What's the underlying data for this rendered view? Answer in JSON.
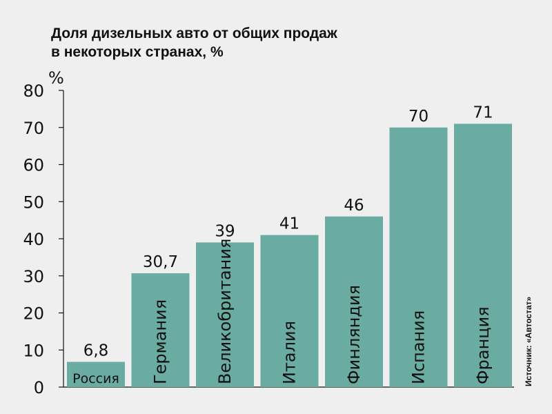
{
  "chart_data": {
    "type": "bar",
    "title": "Доля дизельных авто от общих продаж",
    "subtitle": "в некоторых странах, %",
    "ylabel": "%",
    "xlabel": "",
    "ylim": [
      0,
      80
    ],
    "yticks": [
      "0",
      "10",
      "20",
      "30",
      "40",
      "50",
      "60",
      "70",
      "80"
    ],
    "categories": [
      "Россия",
      "Германия",
      "Великобритания",
      "Италия",
      "Финляндия",
      "Испания",
      "Франция"
    ],
    "values": [
      6.8,
      30.7,
      39,
      41,
      46,
      70,
      71
    ],
    "value_labels": [
      "6,8",
      "30,7",
      "39",
      "41",
      "46",
      "70",
      "71"
    ],
    "grid": false,
    "bar_color": "#6aaba2",
    "source": "Источник: «Автостат»"
  }
}
